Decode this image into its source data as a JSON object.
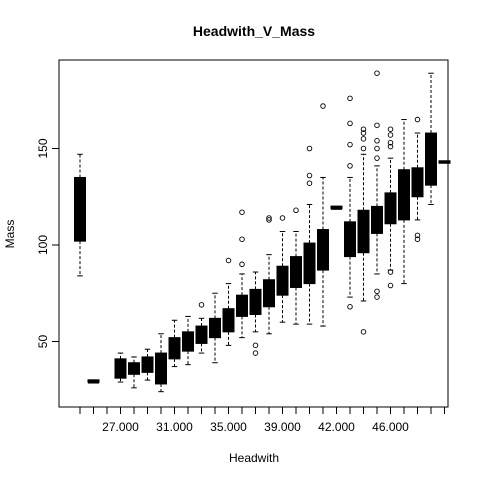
{
  "chart_data": {
    "type": "boxplot",
    "title": "Headwith_V_Mass",
    "xlabel": "Headwith",
    "ylabel": "Mass",
    "ylim": [
      15,
      195
    ],
    "yticks": [
      50,
      100,
      150
    ],
    "x_tick_labels": [
      "27.000",
      "31.000",
      "35.000",
      "39.000",
      "42.000",
      "46.000"
    ],
    "x_tick_label_positions": [
      4,
      8,
      12,
      16,
      20,
      24
    ],
    "groups": [
      {
        "pos": 1,
        "whisker_low": 84,
        "q1": 102,
        "median": 118,
        "q3": 135,
        "whisker_high": 147,
        "outliers": []
      },
      {
        "pos": 2,
        "whisker_low": 29,
        "q1": 29,
        "median": 29,
        "q3": 30,
        "whisker_high": 30,
        "outliers": []
      },
      {
        "pos": 4,
        "whisker_low": 29,
        "q1": 31,
        "median": 35,
        "q3": 41,
        "whisker_high": 44,
        "outliers": []
      },
      {
        "pos": 5,
        "whisker_low": 26,
        "q1": 33,
        "median": 36,
        "q3": 39,
        "whisker_high": 42,
        "outliers": []
      },
      {
        "pos": 6,
        "whisker_low": 30,
        "q1": 34,
        "median": 37,
        "q3": 42,
        "whisker_high": 46,
        "outliers": []
      },
      {
        "pos": 7,
        "whisker_low": 24,
        "q1": 28,
        "median": 37,
        "q3": 44,
        "whisker_high": 54,
        "outliers": []
      },
      {
        "pos": 8,
        "whisker_low": 37,
        "q1": 41,
        "median": 46,
        "q3": 52,
        "whisker_high": 61,
        "outliers": []
      },
      {
        "pos": 9,
        "whisker_low": 38,
        "q1": 45,
        "median": 50,
        "q3": 55,
        "whisker_high": 63,
        "outliers": []
      },
      {
        "pos": 10,
        "whisker_low": 44,
        "q1": 49,
        "median": 52,
        "q3": 58,
        "whisker_high": 62,
        "outliers": [
          69
        ]
      },
      {
        "pos": 11,
        "whisker_low": 39,
        "q1": 52,
        "median": 57,
        "q3": 62,
        "whisker_high": 75,
        "outliers": []
      },
      {
        "pos": 12,
        "whisker_low": 48,
        "q1": 55,
        "median": 61,
        "q3": 67,
        "whisker_high": 80,
        "outliers": [
          92
        ]
      },
      {
        "pos": 13,
        "whisker_low": 52,
        "q1": 63,
        "median": 68,
        "q3": 74,
        "whisker_high": 85,
        "outliers": [
          90,
          103,
          117
        ]
      },
      {
        "pos": 14,
        "whisker_low": 55,
        "q1": 64,
        "median": 70,
        "q3": 77,
        "whisker_high": 86,
        "outliers": [
          44,
          48
        ]
      },
      {
        "pos": 15,
        "whisker_low": 54,
        "q1": 68,
        "median": 75,
        "q3": 82,
        "whisker_high": 95,
        "outliers": [
          113,
          114
        ]
      },
      {
        "pos": 16,
        "whisker_low": 60,
        "q1": 74,
        "median": 80,
        "q3": 89,
        "whisker_high": 107,
        "outliers": [
          114
        ]
      },
      {
        "pos": 17,
        "whisker_low": 59,
        "q1": 78,
        "median": 86,
        "q3": 94,
        "whisker_high": 107,
        "outliers": [
          118
        ]
      },
      {
        "pos": 18,
        "whisker_low": 59,
        "q1": 80,
        "median": 88,
        "q3": 101,
        "whisker_high": 121,
        "outliers": [
          132,
          136,
          150
        ]
      },
      {
        "pos": 19,
        "whisker_low": 58,
        "q1": 87,
        "median": 94,
        "q3": 108,
        "whisker_high": 135,
        "outliers": [
          172
        ]
      },
      {
        "pos": 20,
        "whisker_low": 119,
        "q1": 119,
        "median": 119,
        "q3": 120,
        "whisker_high": 120,
        "outliers": []
      },
      {
        "pos": 21,
        "whisker_low": 73,
        "q1": 94,
        "median": 102,
        "q3": 112,
        "whisker_high": 135,
        "outliers": [
          68,
          141,
          152,
          163,
          176
        ]
      },
      {
        "pos": 22,
        "whisker_low": 71,
        "q1": 96,
        "median": 108,
        "q3": 118,
        "whisker_high": 147,
        "outliers": [
          55,
          150,
          155,
          158,
          160
        ]
      },
      {
        "pos": 23,
        "whisker_low": 85,
        "q1": 106,
        "median": 113,
        "q3": 120,
        "whisker_high": 141,
        "outliers": [
          73,
          76,
          145,
          150,
          154,
          162,
          189
        ]
      },
      {
        "pos": 24,
        "whisker_low": 87,
        "q1": 111,
        "median": 118,
        "q3": 127,
        "whisker_high": 145,
        "outliers": [
          79,
          86,
          151,
          153,
          157,
          160
        ]
      },
      {
        "pos": 25,
        "whisker_low": 80,
        "q1": 113,
        "median": 124,
        "q3": 139,
        "whisker_high": 165,
        "outliers": []
      },
      {
        "pos": 26,
        "whisker_low": 113,
        "q1": 125,
        "median": 132,
        "q3": 140,
        "whisker_high": 158,
        "outliers": [
          103,
          105,
          165
        ]
      },
      {
        "pos": 27,
        "whisker_low": 121,
        "q1": 131,
        "median": 139,
        "q3": 158,
        "whisker_high": 189,
        "outliers": []
      },
      {
        "pos": 28,
        "whisker_low": 143,
        "q1": 143,
        "median": 143,
        "q3": 143,
        "whisker_high": 143,
        "outliers": []
      }
    ]
  }
}
